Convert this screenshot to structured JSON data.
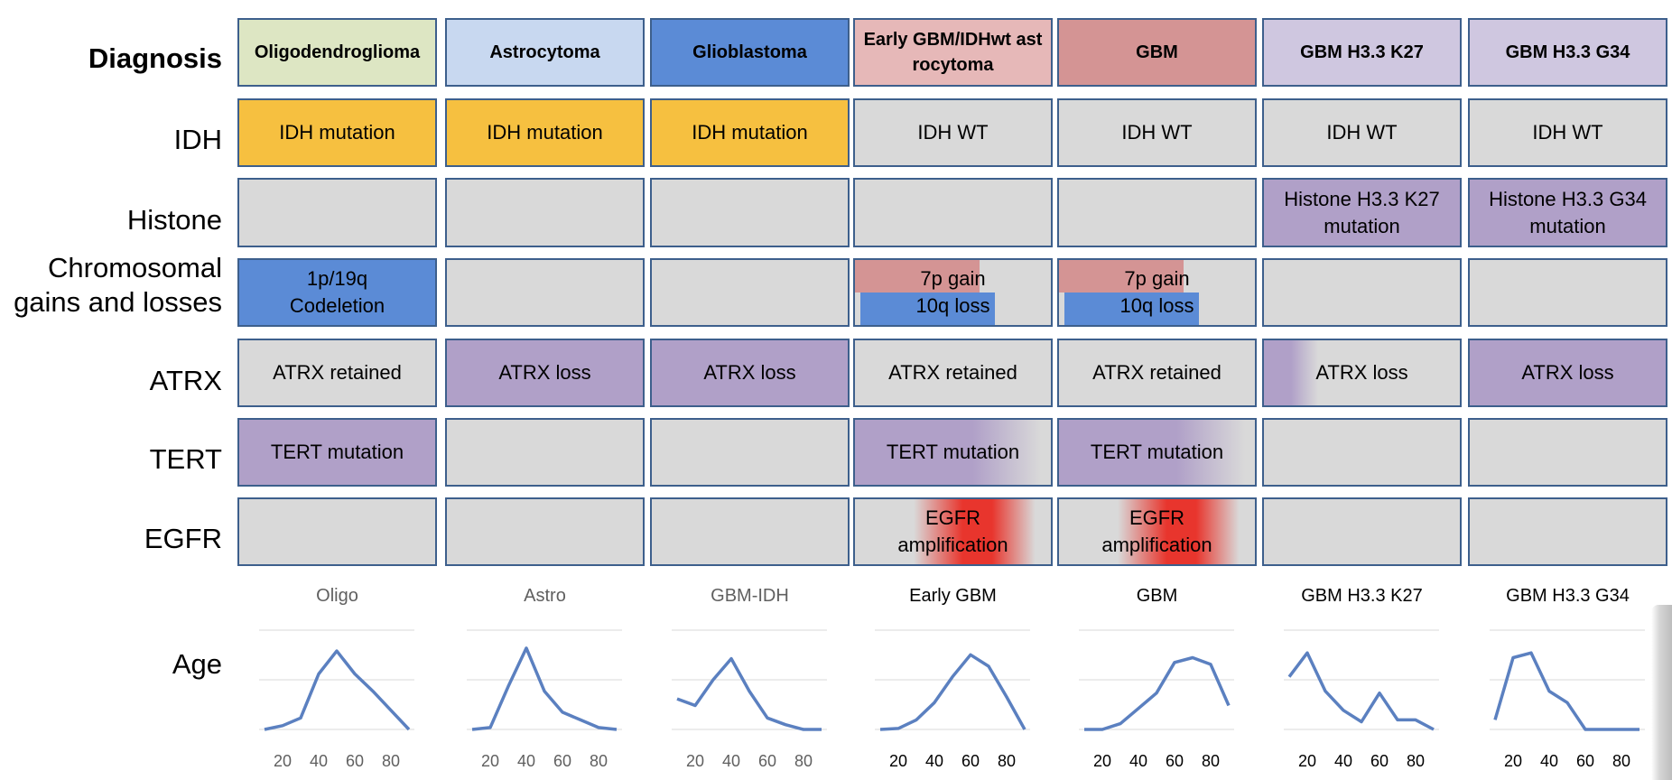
{
  "row_labels": {
    "diagnosis": "Diagnosis",
    "idh": "IDH",
    "histone": "Histone",
    "chrom_line1": "Chromosomal",
    "chrom_line2": "gains and losses",
    "atrx": "ATRX",
    "tert": "TERT",
    "egfr": "EGFR",
    "age": "Age"
  },
  "colors": {
    "border": "#3d5f8c",
    "grey": "#d9d9d9",
    "yellow": "#f6c040",
    "purple": "#b0a0c8",
    "blue": "#5b8bd6",
    "pink": "#d49494",
    "red": "#e8352d",
    "line": "#5b80c0"
  },
  "columns": [
    {
      "diagnosis": "Oligodendroglioma",
      "diagnosis_bg": "#dde6c3",
      "idh": "IDH mutation",
      "idh_style": "yellow",
      "histone": "",
      "histone_style": "grey",
      "chrom_style": "blue",
      "chrom_line1": "1p/19q",
      "chrom_line2": "Codeletion",
      "atrx": "ATRX retained",
      "atrx_style": "grey",
      "tert": "TERT mutation",
      "tert_style": "purple",
      "egfr_line1": "",
      "egfr_line2": "",
      "egfr_style": "grey",
      "title": "Oligo",
      "title_grey": true,
      "age": {
        "x": [
          10,
          20,
          30,
          40,
          50,
          60,
          70,
          80,
          90
        ],
        "y": [
          0,
          4,
          12,
          58,
          82,
          58,
          40,
          20,
          0
        ],
        "ticks": [
          "20",
          "40",
          "60",
          "80"
        ]
      }
    },
    {
      "diagnosis": "Astrocytoma",
      "diagnosis_bg": "#c8d8f0",
      "idh": "IDH mutation",
      "idh_style": "yellow",
      "histone": "",
      "histone_style": "grey",
      "chrom_style": "grey",
      "chrom_line1": "",
      "chrom_line2": "",
      "atrx": "ATRX loss",
      "atrx_style": "purple",
      "tert": "",
      "tert_style": "grey",
      "egfr_line1": "",
      "egfr_line2": "",
      "egfr_style": "grey",
      "title": "Astro",
      "title_grey": true,
      "age": {
        "x": [
          10,
          20,
          30,
          40,
          50,
          60,
          70,
          80,
          90
        ],
        "y": [
          0,
          2,
          45,
          85,
          40,
          18,
          10,
          2,
          0
        ],
        "ticks": [
          "20",
          "40",
          "60",
          "80"
        ]
      }
    },
    {
      "diagnosis": "Glioblastoma",
      "diagnosis_bg": "#5b8bd6",
      "idh": "IDH mutation",
      "idh_style": "yellow",
      "histone": "",
      "histone_style": "grey",
      "chrom_style": "grey",
      "chrom_line1": "",
      "chrom_line2": "",
      "atrx": "ATRX loss",
      "atrx_style": "purple",
      "tert": "",
      "tert_style": "grey",
      "egfr_line1": "",
      "egfr_line2": "",
      "egfr_style": "grey",
      "title": "GBM-IDH",
      "title_grey": true,
      "age": {
        "x": [
          10,
          20,
          30,
          40,
          50,
          60,
          70,
          80,
          90
        ],
        "y": [
          32,
          25,
          52,
          74,
          40,
          12,
          5,
          0,
          0
        ],
        "ticks": [
          "20",
          "40",
          "60",
          "80"
        ]
      }
    },
    {
      "diagnosis": "Early GBM/IDHwt astrocytoma",
      "diagnosis_bg": "#e6b8b8",
      "idh": "IDH WT",
      "idh_style": "grey",
      "histone": "",
      "histone_style": "grey",
      "chrom_style": "split",
      "chrom_line1": "7p gain",
      "chrom_line2": "10q loss",
      "atrx": "ATRX retained",
      "atrx_style": "grey",
      "tert": "TERT mutation",
      "tert_style": "purple-fade",
      "egfr_line1": "EGFR",
      "egfr_line2": "amplification",
      "egfr_style": "red",
      "title": "Early GBM",
      "title_grey": false,
      "age": {
        "x": [
          10,
          20,
          30,
          40,
          50,
          60,
          70,
          80,
          90
        ],
        "y": [
          0,
          1,
          10,
          28,
          55,
          78,
          66,
          34,
          0
        ],
        "ticks": [
          "20",
          "40",
          "60",
          "80"
        ]
      }
    },
    {
      "diagnosis": "GBM",
      "diagnosis_bg": "#d49494",
      "idh": "IDH WT",
      "idh_style": "grey",
      "histone": "",
      "histone_style": "grey",
      "chrom_style": "split",
      "chrom_line1": "7p gain",
      "chrom_line2": "10q loss",
      "atrx": "ATRX retained",
      "atrx_style": "grey",
      "tert": "TERT mutation",
      "tert_style": "purple-fade",
      "egfr_line1": "EGFR",
      "egfr_line2": "amplification",
      "egfr_style": "red",
      "title": "GBM",
      "title_grey": false,
      "age": {
        "x": [
          10,
          20,
          30,
          40,
          50,
          60,
          70,
          80,
          90
        ],
        "y": [
          0,
          0,
          6,
          22,
          38,
          70,
          75,
          68,
          25
        ],
        "ticks": [
          "20",
          "40",
          "60",
          "80"
        ]
      }
    },
    {
      "diagnosis": "GBM H3.3 K27",
      "diagnosis_bg": "#cfc7e0",
      "idh": "IDH WT",
      "idh_style": "grey",
      "histone": "Histone H3.3 K27 mutation",
      "histone_style": "purple",
      "chrom_style": "grey",
      "chrom_line1": "",
      "chrom_line2": "",
      "atrx": "ATRX loss",
      "atrx_style": "purple-edge",
      "tert": "",
      "tert_style": "grey",
      "egfr_line1": "",
      "egfr_line2": "",
      "egfr_style": "grey",
      "title": "GBM H3.3 K27",
      "title_grey": false,
      "age": {
        "x": [
          10,
          20,
          30,
          40,
          50,
          60,
          70,
          80,
          90
        ],
        "y": [
          55,
          80,
          40,
          20,
          8,
          38,
          10,
          10,
          0
        ],
        "ticks": [
          "20",
          "40",
          "60",
          "80"
        ]
      }
    },
    {
      "diagnosis": "GBM H3.3 G34",
      "diagnosis_bg": "#cfc7e0",
      "idh": "IDH WT",
      "idh_style": "grey",
      "histone": "Histone H3.3 G34 mutation",
      "histone_style": "purple",
      "chrom_style": "grey",
      "chrom_line1": "",
      "chrom_line2": "",
      "atrx": "ATRX loss",
      "atrx_style": "purple",
      "tert": "",
      "tert_style": "grey",
      "egfr_line1": "",
      "egfr_line2": "",
      "egfr_style": "grey",
      "title": "GBM H3.3 G34",
      "title_grey": false,
      "age": {
        "x": [
          10,
          20,
          30,
          40,
          50,
          60,
          70,
          80,
          90
        ],
        "y": [
          10,
          75,
          80,
          40,
          28,
          0,
          0,
          0,
          0
        ],
        "ticks": [
          "20",
          "40",
          "60",
          "80"
        ]
      }
    }
  ]
}
